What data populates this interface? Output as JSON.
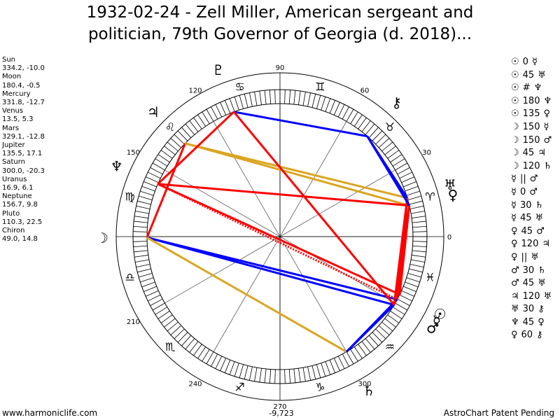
{
  "title": {
    "line1": "1932-02-24 - Zell Miller, American sergeant and",
    "line2": "politician, 79th Governor of Georgia (d. 2018)..."
  },
  "planets": [
    {
      "name": "Sun",
      "pos": "334.2, -10.0"
    },
    {
      "name": "Moon",
      "pos": "180.4, -0.5"
    },
    {
      "name": "Mercury",
      "pos": "331.8, -12.7"
    },
    {
      "name": "Venus",
      "pos": "13.5, 5.3"
    },
    {
      "name": "Mars",
      "pos": "329.1, -12.8"
    },
    {
      "name": "Jupiter",
      "pos": "135.5, 17.1"
    },
    {
      "name": "Saturn",
      "pos": "300.0, -20.3"
    },
    {
      "name": "Uranus",
      "pos": "16.9, 6.1"
    },
    {
      "name": "Neptune",
      "pos": "156.7, 9.8"
    },
    {
      "name": "Pluto",
      "pos": "110.3, 22.5"
    },
    {
      "name": "Chiron",
      "pos": "49.0, 14.8"
    }
  ],
  "aspects": [
    {
      "a": "☉",
      "asp": "0",
      "b": "☿"
    },
    {
      "a": "☉",
      "asp": "45",
      "b": "♅"
    },
    {
      "a": "☉",
      "asp": "#",
      "b": "♆"
    },
    {
      "a": "☉",
      "asp": "180",
      "b": "♆"
    },
    {
      "a": "☉",
      "asp": "135",
      "b": "♀"
    },
    {
      "a": "☽",
      "asp": "150",
      "b": "☿"
    },
    {
      "a": "☽",
      "asp": "150",
      "b": "♂"
    },
    {
      "a": "☽",
      "asp": "45",
      "b": "♃"
    },
    {
      "a": "☽",
      "asp": "120",
      "b": "♄"
    },
    {
      "a": "☿",
      "asp": "||",
      "b": "♂"
    },
    {
      "a": "☿",
      "asp": "0",
      "b": "♂"
    },
    {
      "a": "☿",
      "asp": "30",
      "b": "♄"
    },
    {
      "a": "☿",
      "asp": "45",
      "b": "♅"
    },
    {
      "a": "♀",
      "asp": "45",
      "b": "♂"
    },
    {
      "a": "♀",
      "asp": "120",
      "b": "♃"
    },
    {
      "a": "♀",
      "asp": "||",
      "b": "♅"
    },
    {
      "a": "♂",
      "asp": "30",
      "b": "♄"
    },
    {
      "a": "♂",
      "asp": "45",
      "b": "♅"
    },
    {
      "a": "♃",
      "asp": "120",
      "b": "♅"
    },
    {
      "a": "♅",
      "asp": "30",
      "b": "⚷"
    },
    {
      "a": "♆",
      "asp": "45",
      "b": "♀"
    },
    {
      "a": "♀",
      "asp": "60",
      "b": "⚷"
    }
  ],
  "degree_labels": [
    {
      "text": "0",
      "deg": 0
    },
    {
      "text": "30",
      "deg": 30
    },
    {
      "text": "60",
      "deg": 60
    },
    {
      "text": "90",
      "deg": 90
    },
    {
      "text": "120",
      "deg": 120
    },
    {
      "text": "150",
      "deg": 150
    },
    {
      "text": "210",
      "deg": 210
    },
    {
      "text": "240",
      "deg": 240
    },
    {
      "text": "270",
      "deg": 270
    },
    {
      "text": "300",
      "deg": 300
    }
  ],
  "zodiac_signs": [
    {
      "glyph": "♈",
      "deg": 15
    },
    {
      "glyph": "♉",
      "deg": 45
    },
    {
      "glyph": "♊",
      "deg": 75
    },
    {
      "glyph": "♋",
      "deg": 105
    },
    {
      "glyph": "♌",
      "deg": 135
    },
    {
      "glyph": "♍",
      "deg": 165
    },
    {
      "glyph": "♎",
      "deg": 195
    },
    {
      "glyph": "♏",
      "deg": 225
    },
    {
      "glyph": "♐",
      "deg": 255
    },
    {
      "glyph": "♑",
      "deg": 285
    },
    {
      "glyph": "♒",
      "deg": 315
    },
    {
      "glyph": "♓",
      "deg": 345
    }
  ],
  "chart_planets": [
    {
      "name": "Sun",
      "glyph": "☉",
      "lon": 334.2
    },
    {
      "name": "Moon",
      "glyph": "☽",
      "lon": 180.4
    },
    {
      "name": "Mercury",
      "glyph": "☿",
      "lon": 331.8
    },
    {
      "name": "Venus",
      "glyph": "♀",
      "lon": 13.5
    },
    {
      "name": "Mars",
      "glyph": "♂",
      "lon": 329.1
    },
    {
      "name": "Jupiter",
      "glyph": "♃",
      "lon": 135.5
    },
    {
      "name": "Saturn",
      "glyph": "♄",
      "lon": 300.0
    },
    {
      "name": "Uranus",
      "glyph": "♅",
      "lon": 16.9
    },
    {
      "name": "Neptune",
      "glyph": "♆",
      "lon": 156.7
    },
    {
      "name": "Pluto",
      "glyph": "♇",
      "lon": 110.3
    },
    {
      "name": "Chiron",
      "glyph": "⚷",
      "lon": 49.0
    }
  ],
  "aspect_lines": [
    {
      "from": 334.2,
      "to": 16.9,
      "color": "#ff0000"
    },
    {
      "from": 334.2,
      "to": 156.7,
      "color": "#ff0000"
    },
    {
      "from": 334.2,
      "to": 13.5,
      "color": "#ff0000"
    },
    {
      "from": 180.4,
      "to": 331.8,
      "color": "#0000ff"
    },
    {
      "from": 180.4,
      "to": 329.1,
      "color": "#0000ff"
    },
    {
      "from": 180.4,
      "to": 135.5,
      "color": "#ff0000"
    },
    {
      "from": 180.4,
      "to": 300.0,
      "color": "#daa520"
    },
    {
      "from": 331.8,
      "to": 16.9,
      "color": "#ff0000"
    },
    {
      "from": 331.8,
      "to": 300.0,
      "color": "#0000ff"
    },
    {
      "from": 13.5,
      "to": 329.1,
      "color": "#ff0000"
    },
    {
      "from": 13.5,
      "to": 135.5,
      "color": "#daa520"
    },
    {
      "from": 329.1,
      "to": 300.0,
      "color": "#0000ff"
    },
    {
      "from": 329.1,
      "to": 16.9,
      "color": "#ff0000"
    },
    {
      "from": 135.5,
      "to": 16.9,
      "color": "#daa520"
    },
    {
      "from": 16.9,
      "to": 49.0,
      "color": "#0000ff"
    },
    {
      "from": 156.7,
      "to": 13.5,
      "color": "#ff0000"
    },
    {
      "from": 13.5,
      "to": 49.0,
      "color": "#0000ff"
    },
    {
      "from": 156.7,
      "to": 110.3,
      "color": "#ff0000"
    },
    {
      "from": 110.3,
      "to": 49.0,
      "color": "#0000ff"
    },
    {
      "from": 110.3,
      "to": 329.1,
      "color": "#ff0000"
    }
  ],
  "aspect_line_dotted": {
    "from": 156.7,
    "to": 331.8,
    "color": "#ff0000"
  },
  "footer": {
    "left": "www.harmoniclife.com",
    "center": "-9,723",
    "right": "AstroChart Patent Pending"
  }
}
